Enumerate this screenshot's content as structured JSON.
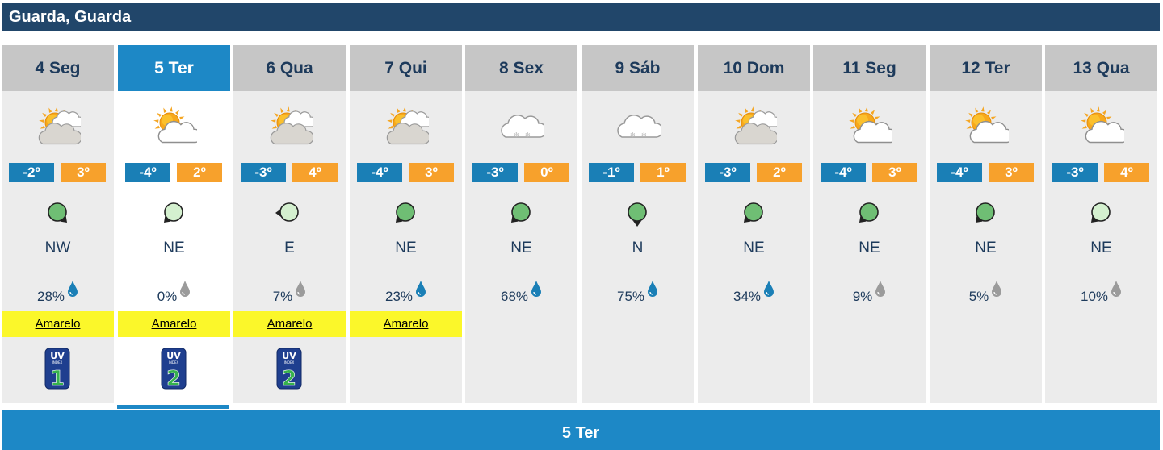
{
  "location_title": "Guarda, Guarda",
  "selected_day_label": "5 Ter",
  "colors": {
    "header": "#21466a",
    "accent": "#1d88c6",
    "min_temp": "#1a7fb6",
    "max_temp": "#f7a12c",
    "alert_yellow": "#fbf72a"
  },
  "days": [
    {
      "label": "4 Seg",
      "icon": "sun-cloud-icon",
      "tmin": "-2º",
      "tmax": "3º",
      "wind_dir": "NW",
      "precip": "28%",
      "alert": "Amarelo",
      "uv": "1",
      "active": false
    },
    {
      "label": "5 Ter",
      "icon": "partly-cloudy-icon",
      "tmin": "-4º",
      "tmax": "2º",
      "wind_dir": "NE",
      "precip": "0%",
      "alert": "Amarelo",
      "uv": "2",
      "active": true
    },
    {
      "label": "6 Qua",
      "icon": "sun-cloud-icon",
      "tmin": "-3º",
      "tmax": "4º",
      "wind_dir": "E",
      "precip": "7%",
      "alert": "Amarelo",
      "uv": "2",
      "active": false
    },
    {
      "label": "7 Qui",
      "icon": "sun-cloud-icon",
      "tmin": "-4º",
      "tmax": "3º",
      "wind_dir": "NE",
      "precip": "23%",
      "alert": "Amarelo",
      "uv": "",
      "active": false
    },
    {
      "label": "8 Sex",
      "icon": "snow-cloud-icon",
      "tmin": "-3º",
      "tmax": "0º",
      "wind_dir": "NE",
      "precip": "68%",
      "alert": "",
      "uv": "",
      "active": false
    },
    {
      "label": "9 Sáb",
      "icon": "snow-cloud-icon",
      "tmin": "-1º",
      "tmax": "1º",
      "wind_dir": "N",
      "precip": "75%",
      "alert": "",
      "uv": "",
      "active": false
    },
    {
      "label": "10 Dom",
      "icon": "sun-cloud-icon",
      "tmin": "-3º",
      "tmax": "2º",
      "wind_dir": "NE",
      "precip": "34%",
      "alert": "",
      "uv": "",
      "active": false
    },
    {
      "label": "11 Seg",
      "icon": "partly-cloudy-icon",
      "tmin": "-4º",
      "tmax": "3º",
      "wind_dir": "NE",
      "precip": "9%",
      "alert": "",
      "uv": "",
      "active": false
    },
    {
      "label": "12 Ter",
      "icon": "partly-cloudy-icon",
      "tmin": "-4º",
      "tmax": "3º",
      "wind_dir": "NE",
      "precip": "5%",
      "alert": "",
      "uv": "",
      "active": false
    },
    {
      "label": "13 Qua",
      "icon": "partly-cloudy-icon",
      "tmin": "-3º",
      "tmax": "4º",
      "wind_dir": "NE",
      "precip": "10%",
      "alert": "",
      "uv": "",
      "active": false
    }
  ]
}
